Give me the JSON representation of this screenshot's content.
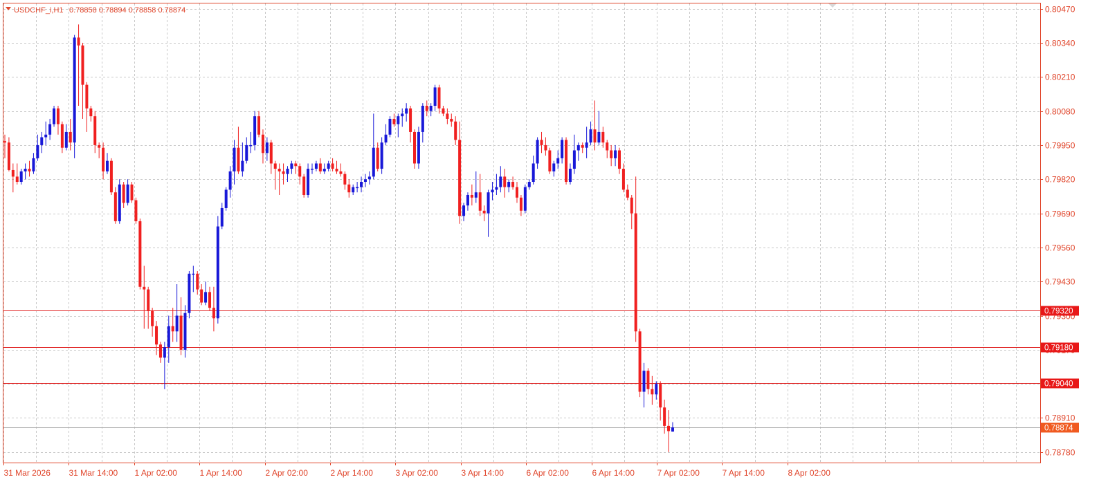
{
  "header": {
    "symbol_label": "USDCHF_i,H1",
    "ohlc_text": "0.78858 0.78894 0.78858 0.78874"
  },
  "colors": {
    "bull": "#1818d8",
    "bear": "#f02020",
    "grid": "#c8c8c8",
    "frame": "#e0452b",
    "level_line": "#e02020",
    "current_price_line": "#b0b0b0",
    "level_box": "#e81818",
    "current_box": "#f05a20"
  },
  "chart_data": {
    "type": "candlestick",
    "yticks": [
      "0.80470",
      "0.80340",
      "0.80210",
      "0.80080",
      "0.79950",
      "0.79820",
      "0.79690",
      "0.79560",
      "0.79430",
      "0.79300",
      "0.79170",
      "0.79040",
      "0.78910",
      "0.78780"
    ],
    "xticks": [
      "31 Mar 2026",
      "31 Mar 14:00",
      "1 Apr 02:00",
      "1 Apr 14:00",
      "2 Apr 02:00",
      "2 Apr 14:00",
      "3 Apr 02:00",
      "3 Apr 14:00",
      "6 Apr 02:00",
      "6 Apr 14:00",
      "7 Apr 02:00",
      "7 Apr 14:00",
      "8 Apr 02:00"
    ],
    "ylim": [
      0.7874,
      0.8049
    ],
    "grid": true,
    "levels": [
      {
        "price": 0.7932,
        "label": "0.79320"
      },
      {
        "price": 0.7918,
        "label": "0.79180"
      },
      {
        "price": 0.79042,
        "label": "0.79040"
      }
    ],
    "current_price": {
      "price": 0.78874,
      "label": "0.78874"
    },
    "candles": [
      {
        "o": 0.79965,
        "h": 0.7999,
        "l": 0.799,
        "c": 0.7996
      },
      {
        "o": 0.7996,
        "h": 0.7998,
        "l": 0.7985,
        "c": 0.79855
      },
      {
        "o": 0.79855,
        "h": 0.7988,
        "l": 0.7977,
        "c": 0.7983
      },
      {
        "o": 0.7983,
        "h": 0.7988,
        "l": 0.798,
        "c": 0.7981
      },
      {
        "o": 0.7981,
        "h": 0.7986,
        "l": 0.798,
        "c": 0.7985
      },
      {
        "o": 0.7985,
        "h": 0.7988,
        "l": 0.7982,
        "c": 0.7986
      },
      {
        "o": 0.7986,
        "h": 0.7989,
        "l": 0.7983,
        "c": 0.7985
      },
      {
        "o": 0.7985,
        "h": 0.7992,
        "l": 0.7984,
        "c": 0.799
      },
      {
        "o": 0.799,
        "h": 0.7999,
        "l": 0.7989,
        "c": 0.7995
      },
      {
        "o": 0.7995,
        "h": 0.8,
        "l": 0.7992,
        "c": 0.7998
      },
      {
        "o": 0.7998,
        "h": 0.8004,
        "l": 0.7995,
        "c": 0.7999
      },
      {
        "o": 0.7999,
        "h": 0.8005,
        "l": 0.7997,
        "c": 0.8003
      },
      {
        "o": 0.8003,
        "h": 0.801,
        "l": 0.8002,
        "c": 0.8009
      },
      {
        "o": 0.8009,
        "h": 0.801,
        "l": 0.7999,
        "c": 0.8003
      },
      {
        "o": 0.8003,
        "h": 0.8004,
        "l": 0.7992,
        "c": 0.7994
      },
      {
        "o": 0.7994,
        "h": 0.8003,
        "l": 0.7993,
        "c": 0.8
      },
      {
        "o": 0.8,
        "h": 0.8005,
        "l": 0.7993,
        "c": 0.7996
      },
      {
        "o": 0.7996,
        "h": 0.8037,
        "l": 0.799,
        "c": 0.8036
      },
      {
        "o": 0.8036,
        "h": 0.8041,
        "l": 0.801,
        "c": 0.8033
      },
      {
        "o": 0.8033,
        "h": 0.8034,
        "l": 0.8005,
        "c": 0.8018
      },
      {
        "o": 0.8018,
        "h": 0.8019,
        "l": 0.8,
        "c": 0.8009
      },
      {
        "o": 0.8009,
        "h": 0.801,
        "l": 0.8004,
        "c": 0.8006
      },
      {
        "o": 0.8006,
        "h": 0.8008,
        "l": 0.7992,
        "c": 0.7995
      },
      {
        "o": 0.7995,
        "h": 0.7996,
        "l": 0.799,
        "c": 0.7994
      },
      {
        "o": 0.7994,
        "h": 0.7996,
        "l": 0.7982,
        "c": 0.7985
      },
      {
        "o": 0.7985,
        "h": 0.7992,
        "l": 0.7984,
        "c": 0.7989
      },
      {
        "o": 0.7989,
        "h": 0.799,
        "l": 0.7976,
        "c": 0.7977
      },
      {
        "o": 0.7977,
        "h": 0.7979,
        "l": 0.7965,
        "c": 0.7966
      },
      {
        "o": 0.7966,
        "h": 0.7982,
        "l": 0.7965,
        "c": 0.798
      },
      {
        "o": 0.798,
        "h": 0.7981,
        "l": 0.7971,
        "c": 0.7973
      },
      {
        "o": 0.7973,
        "h": 0.7982,
        "l": 0.7972,
        "c": 0.798
      },
      {
        "o": 0.798,
        "h": 0.7981,
        "l": 0.7973,
        "c": 0.7974
      },
      {
        "o": 0.7974,
        "h": 0.7975,
        "l": 0.7965,
        "c": 0.7966
      },
      {
        "o": 0.7966,
        "h": 0.7967,
        "l": 0.794,
        "c": 0.7941
      },
      {
        "o": 0.7941,
        "h": 0.7949,
        "l": 0.7925,
        "c": 0.794
      },
      {
        "o": 0.794,
        "h": 0.7941,
        "l": 0.7925,
        "c": 0.7932
      },
      {
        "o": 0.7932,
        "h": 0.7933,
        "l": 0.7922,
        "c": 0.7926
      },
      {
        "o": 0.7926,
        "h": 0.7928,
        "l": 0.7915,
        "c": 0.7919
      },
      {
        "o": 0.7919,
        "h": 0.792,
        "l": 0.7912,
        "c": 0.7914
      },
      {
        "o": 0.7914,
        "h": 0.792,
        "l": 0.7902,
        "c": 0.7918
      },
      {
        "o": 0.7918,
        "h": 0.793,
        "l": 0.7912,
        "c": 0.7926
      },
      {
        "o": 0.7926,
        "h": 0.7933,
        "l": 0.792,
        "c": 0.7924
      },
      {
        "o": 0.7924,
        "h": 0.7942,
        "l": 0.792,
        "c": 0.793
      },
      {
        "o": 0.793,
        "h": 0.7937,
        "l": 0.7915,
        "c": 0.7917
      },
      {
        "o": 0.7917,
        "h": 0.7934,
        "l": 0.7914,
        "c": 0.7931
      },
      {
        "o": 0.7931,
        "h": 0.7947,
        "l": 0.7929,
        "c": 0.7946
      },
      {
        "o": 0.7946,
        "h": 0.7949,
        "l": 0.7939,
        "c": 0.7946
      },
      {
        "o": 0.7946,
        "h": 0.7947,
        "l": 0.7938,
        "c": 0.794
      },
      {
        "o": 0.794,
        "h": 0.7942,
        "l": 0.7934,
        "c": 0.7935
      },
      {
        "o": 0.7935,
        "h": 0.7943,
        "l": 0.7934,
        "c": 0.7939
      },
      {
        "o": 0.7939,
        "h": 0.7941,
        "l": 0.7932,
        "c": 0.7933
      },
      {
        "o": 0.7933,
        "h": 0.7941,
        "l": 0.7924,
        "c": 0.7929
      },
      {
        "o": 0.7929,
        "h": 0.7968,
        "l": 0.7927,
        "c": 0.7964
      },
      {
        "o": 0.7964,
        "h": 0.7973,
        "l": 0.7963,
        "c": 0.7971
      },
      {
        "o": 0.7971,
        "h": 0.7979,
        "l": 0.797,
        "c": 0.7978
      },
      {
        "o": 0.7978,
        "h": 0.7987,
        "l": 0.7975,
        "c": 0.7985
      },
      {
        "o": 0.7985,
        "h": 0.7997,
        "l": 0.798,
        "c": 0.7994
      },
      {
        "o": 0.7994,
        "h": 0.8002,
        "l": 0.7984,
        "c": 0.7985
      },
      {
        "o": 0.7985,
        "h": 0.7996,
        "l": 0.7983,
        "c": 0.7989
      },
      {
        "o": 0.7989,
        "h": 0.7998,
        "l": 0.7988,
        "c": 0.7995
      },
      {
        "o": 0.7995,
        "h": 0.8,
        "l": 0.7992,
        "c": 0.7995
      },
      {
        "o": 0.7995,
        "h": 0.8008,
        "l": 0.7993,
        "c": 0.8006
      },
      {
        "o": 0.8006,
        "h": 0.8008,
        "l": 0.7998,
        "c": 0.7999
      },
      {
        "o": 0.7999,
        "h": 0.8001,
        "l": 0.7988,
        "c": 0.7992
      },
      {
        "o": 0.7992,
        "h": 0.7998,
        "l": 0.7989,
        "c": 0.7996
      },
      {
        "o": 0.7996,
        "h": 0.7997,
        "l": 0.7984,
        "c": 0.7988
      },
      {
        "o": 0.7988,
        "h": 0.7989,
        "l": 0.7978,
        "c": 0.7986
      },
      {
        "o": 0.7986,
        "h": 0.7988,
        "l": 0.7976,
        "c": 0.7985
      },
      {
        "o": 0.7985,
        "h": 0.7988,
        "l": 0.798,
        "c": 0.7984
      },
      {
        "o": 0.7984,
        "h": 0.7987,
        "l": 0.7981,
        "c": 0.7986
      },
      {
        "o": 0.7986,
        "h": 0.7989,
        "l": 0.7984,
        "c": 0.7988
      },
      {
        "o": 0.7988,
        "h": 0.7989,
        "l": 0.7984,
        "c": 0.7987
      },
      {
        "o": 0.7987,
        "h": 0.7988,
        "l": 0.798,
        "c": 0.7983
      },
      {
        "o": 0.7983,
        "h": 0.7984,
        "l": 0.7975,
        "c": 0.7976
      },
      {
        "o": 0.7976,
        "h": 0.7988,
        "l": 0.7975,
        "c": 0.7986
      },
      {
        "o": 0.7986,
        "h": 0.7988,
        "l": 0.7984,
        "c": 0.7986
      },
      {
        "o": 0.7986,
        "h": 0.7989,
        "l": 0.7985,
        "c": 0.7988
      },
      {
        "o": 0.7988,
        "h": 0.799,
        "l": 0.7984,
        "c": 0.7985
      },
      {
        "o": 0.7985,
        "h": 0.7988,
        "l": 0.7984,
        "c": 0.7986
      },
      {
        "o": 0.7986,
        "h": 0.7989,
        "l": 0.7985,
        "c": 0.7988
      },
      {
        "o": 0.7988,
        "h": 0.799,
        "l": 0.7985,
        "c": 0.7986
      },
      {
        "o": 0.7986,
        "h": 0.7989,
        "l": 0.7984,
        "c": 0.7985
      },
      {
        "o": 0.7985,
        "h": 0.7988,
        "l": 0.7983,
        "c": 0.7984
      },
      {
        "o": 0.7984,
        "h": 0.7985,
        "l": 0.7978,
        "c": 0.798
      },
      {
        "o": 0.798,
        "h": 0.7982,
        "l": 0.7975,
        "c": 0.7977
      },
      {
        "o": 0.7977,
        "h": 0.798,
        "l": 0.7976,
        "c": 0.7979
      },
      {
        "o": 0.7979,
        "h": 0.7981,
        "l": 0.7977,
        "c": 0.7979
      },
      {
        "o": 0.7979,
        "h": 0.7983,
        "l": 0.7977,
        "c": 0.7981
      },
      {
        "o": 0.7981,
        "h": 0.7984,
        "l": 0.7979,
        "c": 0.7982
      },
      {
        "o": 0.7982,
        "h": 0.7985,
        "l": 0.798,
        "c": 0.7983
      },
      {
        "o": 0.7983,
        "h": 0.8007,
        "l": 0.7982,
        "c": 0.7994
      },
      {
        "o": 0.7994,
        "h": 0.7996,
        "l": 0.7985,
        "c": 0.7986
      },
      {
        "o": 0.7986,
        "h": 0.7998,
        "l": 0.7984,
        "c": 0.7996
      },
      {
        "o": 0.7996,
        "h": 0.8003,
        "l": 0.7995,
        "c": 0.7999
      },
      {
        "o": 0.7999,
        "h": 0.8006,
        "l": 0.7998,
        "c": 0.8005
      },
      {
        "o": 0.8005,
        "h": 0.8007,
        "l": 0.8002,
        "c": 0.8003
      },
      {
        "o": 0.8003,
        "h": 0.8007,
        "l": 0.7998,
        "c": 0.8006
      },
      {
        "o": 0.8006,
        "h": 0.8009,
        "l": 0.8002,
        "c": 0.8007
      },
      {
        "o": 0.8007,
        "h": 0.8011,
        "l": 0.8004,
        "c": 0.8009
      },
      {
        "o": 0.8009,
        "h": 0.801,
        "l": 0.7996,
        "c": 0.8
      },
      {
        "o": 0.8,
        "h": 0.8001,
        "l": 0.7986,
        "c": 0.7988
      },
      {
        "o": 0.7988,
        "h": 0.8002,
        "l": 0.7986,
        "c": 0.8
      },
      {
        "o": 0.8,
        "h": 0.8011,
        "l": 0.7996,
        "c": 0.801
      },
      {
        "o": 0.801,
        "h": 0.8012,
        "l": 0.8006,
        "c": 0.8008
      },
      {
        "o": 0.8008,
        "h": 0.8011,
        "l": 0.8006,
        "c": 0.801
      },
      {
        "o": 0.801,
        "h": 0.8018,
        "l": 0.8008,
        "c": 0.8017
      },
      {
        "o": 0.8017,
        "h": 0.8018,
        "l": 0.8007,
        "c": 0.8009
      },
      {
        "o": 0.8009,
        "h": 0.801,
        "l": 0.8006,
        "c": 0.8007
      },
      {
        "o": 0.8007,
        "h": 0.8009,
        "l": 0.8003,
        "c": 0.8005
      },
      {
        "o": 0.8005,
        "h": 0.8007,
        "l": 0.8002,
        "c": 0.8004
      },
      {
        "o": 0.8004,
        "h": 0.8006,
        "l": 0.7995,
        "c": 0.7997
      },
      {
        "o": 0.7997,
        "h": 0.8004,
        "l": 0.7965,
        "c": 0.7968
      },
      {
        "o": 0.7968,
        "h": 0.7973,
        "l": 0.7966,
        "c": 0.7972
      },
      {
        "o": 0.7972,
        "h": 0.7977,
        "l": 0.797,
        "c": 0.7976
      },
      {
        "o": 0.7976,
        "h": 0.798,
        "l": 0.7972,
        "c": 0.7975
      },
      {
        "o": 0.7975,
        "h": 0.7985,
        "l": 0.7973,
        "c": 0.7977
      },
      {
        "o": 0.7977,
        "h": 0.7984,
        "l": 0.7968,
        "c": 0.797
      },
      {
        "o": 0.797,
        "h": 0.7972,
        "l": 0.7966,
        "c": 0.7969
      },
      {
        "o": 0.7969,
        "h": 0.7978,
        "l": 0.796,
        "c": 0.7977
      },
      {
        "o": 0.7977,
        "h": 0.7981,
        "l": 0.7974,
        "c": 0.7978
      },
      {
        "o": 0.7978,
        "h": 0.7984,
        "l": 0.7976,
        "c": 0.7979
      },
      {
        "o": 0.7979,
        "h": 0.7987,
        "l": 0.7977,
        "c": 0.7983
      },
      {
        "o": 0.7983,
        "h": 0.7986,
        "l": 0.7975,
        "c": 0.7979
      },
      {
        "o": 0.7979,
        "h": 0.7982,
        "l": 0.7977,
        "c": 0.7981
      },
      {
        "o": 0.7981,
        "h": 0.7983,
        "l": 0.7978,
        "c": 0.7979
      },
      {
        "o": 0.7979,
        "h": 0.7981,
        "l": 0.7973,
        "c": 0.7975
      },
      {
        "o": 0.7975,
        "h": 0.7976,
        "l": 0.7968,
        "c": 0.797
      },
      {
        "o": 0.797,
        "h": 0.798,
        "l": 0.7969,
        "c": 0.7979
      },
      {
        "o": 0.7979,
        "h": 0.7982,
        "l": 0.7978,
        "c": 0.7981
      },
      {
        "o": 0.7981,
        "h": 0.7991,
        "l": 0.798,
        "c": 0.7988
      },
      {
        "o": 0.7988,
        "h": 0.7998,
        "l": 0.7986,
        "c": 0.7997
      },
      {
        "o": 0.7997,
        "h": 0.8,
        "l": 0.7992,
        "c": 0.7995
      },
      {
        "o": 0.7995,
        "h": 0.7998,
        "l": 0.7991,
        "c": 0.7993
      },
      {
        "o": 0.7993,
        "h": 0.7994,
        "l": 0.7984,
        "c": 0.7985
      },
      {
        "o": 0.7985,
        "h": 0.7989,
        "l": 0.7983,
        "c": 0.7988
      },
      {
        "o": 0.7988,
        "h": 0.7993,
        "l": 0.7986,
        "c": 0.799
      },
      {
        "o": 0.799,
        "h": 0.7998,
        "l": 0.7988,
        "c": 0.7997
      },
      {
        "o": 0.7997,
        "h": 0.7998,
        "l": 0.798,
        "c": 0.7981
      },
      {
        "o": 0.7981,
        "h": 0.7988,
        "l": 0.798,
        "c": 0.7986
      },
      {
        "o": 0.7986,
        "h": 0.7999,
        "l": 0.7984,
        "c": 0.7993
      },
      {
        "o": 0.7993,
        "h": 0.7996,
        "l": 0.7989,
        "c": 0.7995
      },
      {
        "o": 0.7995,
        "h": 0.7996,
        "l": 0.7992,
        "c": 0.7994
      },
      {
        "o": 0.7994,
        "h": 0.8002,
        "l": 0.799,
        "c": 0.7996
      },
      {
        "o": 0.7996,
        "h": 0.8004,
        "l": 0.7995,
        "c": 0.8001
      },
      {
        "o": 0.8001,
        "h": 0.8012,
        "l": 0.7993,
        "c": 0.7996
      },
      {
        "o": 0.7996,
        "h": 0.8008,
        "l": 0.7995,
        "c": 0.8
      },
      {
        "o": 0.8,
        "h": 0.8002,
        "l": 0.7994,
        "c": 0.7996
      },
      {
        "o": 0.7996,
        "h": 0.7997,
        "l": 0.799,
        "c": 0.7993
      },
      {
        "o": 0.7993,
        "h": 0.7995,
        "l": 0.7987,
        "c": 0.799
      },
      {
        "o": 0.799,
        "h": 0.7995,
        "l": 0.7987,
        "c": 0.7993
      },
      {
        "o": 0.7993,
        "h": 0.7994,
        "l": 0.7984,
        "c": 0.7986
      },
      {
        "o": 0.7986,
        "h": 0.7988,
        "l": 0.7977,
        "c": 0.7978
      },
      {
        "o": 0.7978,
        "h": 0.798,
        "l": 0.7974,
        "c": 0.7975
      },
      {
        "o": 0.7975,
        "h": 0.7976,
        "l": 0.7963,
        "c": 0.7969
      },
      {
        "o": 0.7969,
        "h": 0.7983,
        "l": 0.792,
        "c": 0.7924
      },
      {
        "o": 0.7924,
        "h": 0.7925,
        "l": 0.7899,
        "c": 0.7901
      },
      {
        "o": 0.7901,
        "h": 0.7912,
        "l": 0.7895,
        "c": 0.7909
      },
      {
        "o": 0.7909,
        "h": 0.791,
        "l": 0.79,
        "c": 0.7902
      },
      {
        "o": 0.7902,
        "h": 0.7907,
        "l": 0.7896,
        "c": 0.79
      },
      {
        "o": 0.79,
        "h": 0.7905,
        "l": 0.7898,
        "c": 0.7904
      },
      {
        "o": 0.7904,
        "h": 0.7905,
        "l": 0.789,
        "c": 0.7895
      },
      {
        "o": 0.7895,
        "h": 0.7898,
        "l": 0.7885,
        "c": 0.7888
      },
      {
        "o": 0.7888,
        "h": 0.7894,
        "l": 0.7878,
        "c": 0.7886
      },
      {
        "o": 0.78858,
        "h": 0.78894,
        "l": 0.78858,
        "c": 0.78874
      }
    ]
  }
}
